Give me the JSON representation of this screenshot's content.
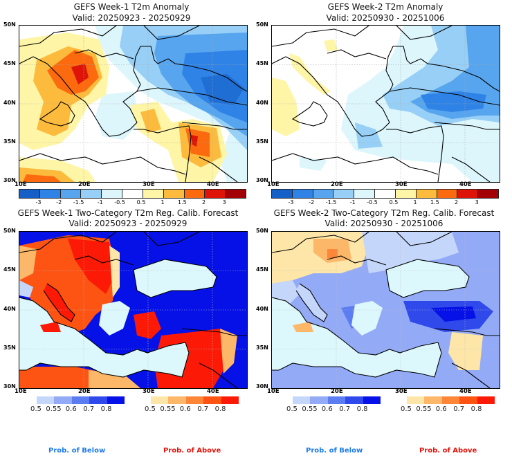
{
  "panels": [
    {
      "title": "GEFS Week-1 T2m Anomaly",
      "valid": "Valid: 20250923 - 20250929"
    },
    {
      "title": "GEFS Week-2 T2m Anomaly",
      "valid": "Valid: 20250930 - 20251006"
    },
    {
      "title": "GEFS Week-1 Two-Category T2m Reg. Calib. Forecast",
      "valid": "Valid: 20250923 - 20250929"
    },
    {
      "title": "GEFS Week-2 Two-Category T2m Reg. Calib. Forecast",
      "valid": "Valid: 20250930 - 20251006"
    }
  ],
  "axes": {
    "lat_labels": [
      "50N",
      "45N",
      "40N",
      "35N",
      "30N"
    ],
    "lon_labels": [
      "10E",
      "20E",
      "30E",
      "40E"
    ]
  },
  "anomaly_colorbar": {
    "colors": [
      "#1560c8",
      "#2f83e6",
      "#56a5ee",
      "#97cff6",
      "#dcf6fc",
      "#ffffff",
      "#fef5a6",
      "#fcbb3d",
      "#fb6a0e",
      "#dd1407",
      "#a30005"
    ],
    "ticks": [
      "-3",
      "-2",
      "-1.5",
      "-1",
      "-0.5",
      "0.5",
      "1",
      "1.5",
      "2",
      "3"
    ]
  },
  "prob_below_colorbar": {
    "colors": [
      "#c5d6fb",
      "#93aaf6",
      "#5c7cf1",
      "#2f49eb",
      "#0511e6"
    ],
    "ticks": [
      "0.5",
      "0.55",
      "0.6",
      "0.7",
      "0.8"
    ],
    "label": "Prob. of Below",
    "label_color": "#1f7be8"
  },
  "prob_above_colorbar": {
    "colors": [
      "#fde6a8",
      "#fdb768",
      "#fd8638",
      "#fd5414",
      "#fc1a06"
    ],
    "ticks": [
      "0.5",
      "0.55",
      "0.6",
      "0.7",
      "0.8"
    ],
    "label": "Prob. of Above",
    "label_color": "#e2140c"
  },
  "sea_color": "#dcf8fd"
}
